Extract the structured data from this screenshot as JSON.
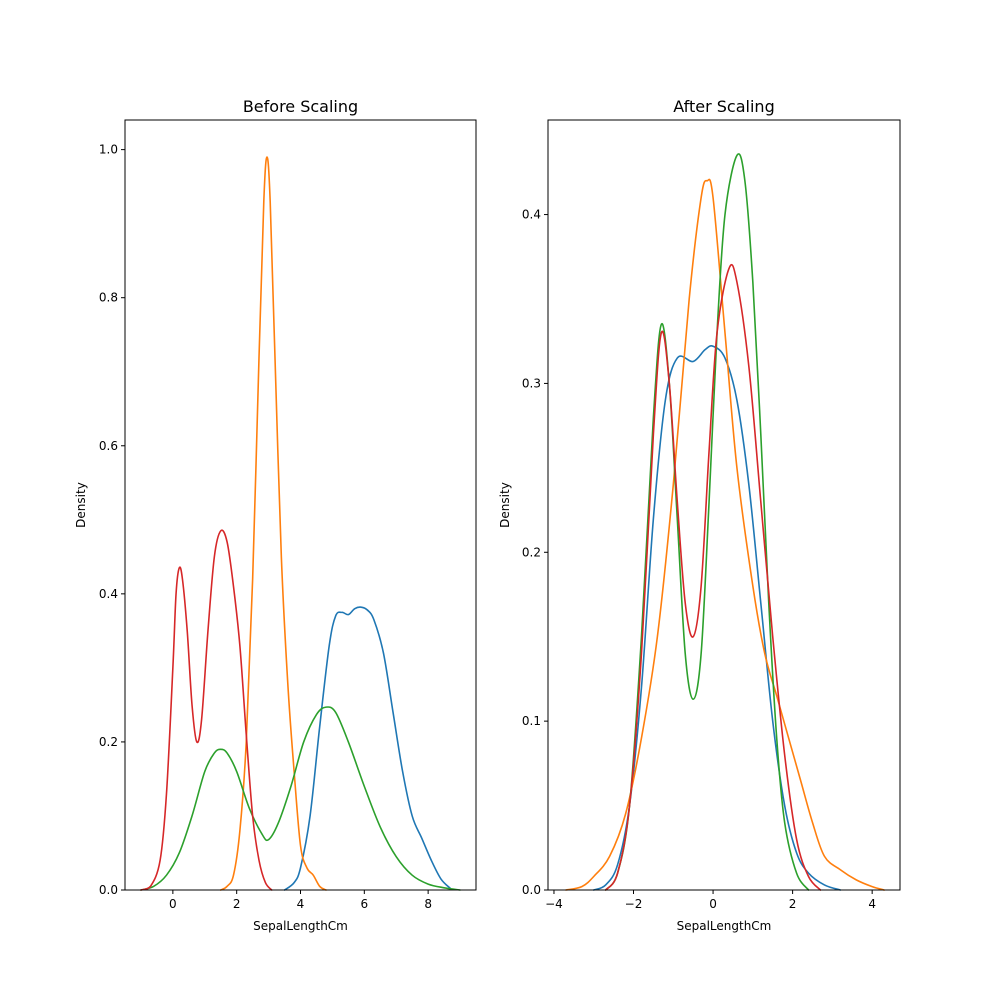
{
  "chart_data": [
    {
      "type": "line",
      "title": "Before Scaling",
      "xlabel": "SepalLengthCm",
      "ylabel": "Density",
      "xlim": [
        -1.5,
        9.5
      ],
      "ylim": [
        0,
        1.04
      ],
      "xticks": [
        0,
        2,
        4,
        6,
        8
      ],
      "xtick_labels": [
        "0",
        "2",
        "4",
        "6",
        "8"
      ],
      "yticks": [
        0.0,
        0.2,
        0.4,
        0.6,
        0.8,
        1.0
      ],
      "ytick_labels": [
        "0.0",
        "0.2",
        "0.4",
        "0.6",
        "0.8",
        "1.0"
      ],
      "grid": false,
      "series": [
        {
          "color": "#1f77b4",
          "points": [
            [
              3.5,
              0
            ],
            [
              3.8,
              0.01
            ],
            [
              4.0,
              0.03
            ],
            [
              4.3,
              0.1
            ],
            [
              4.6,
              0.22
            ],
            [
              4.9,
              0.33
            ],
            [
              5.1,
              0.37
            ],
            [
              5.3,
              0.375
            ],
            [
              5.5,
              0.372
            ],
            [
              5.7,
              0.38
            ],
            [
              5.9,
              0.382
            ],
            [
              6.1,
              0.378
            ],
            [
              6.3,
              0.365
            ],
            [
              6.6,
              0.32
            ],
            [
              6.9,
              0.24
            ],
            [
              7.2,
              0.16
            ],
            [
              7.5,
              0.1
            ],
            [
              7.8,
              0.07
            ],
            [
              8.1,
              0.04
            ],
            [
              8.4,
              0.015
            ],
            [
              8.7,
              0.002
            ]
          ]
        },
        {
          "color": "#ff7f0e",
          "points": [
            [
              1.5,
              0
            ],
            [
              1.7,
              0.005
            ],
            [
              1.9,
              0.02
            ],
            [
              2.1,
              0.08
            ],
            [
              2.3,
              0.2
            ],
            [
              2.5,
              0.42
            ],
            [
              2.7,
              0.72
            ],
            [
              2.85,
              0.93
            ],
            [
              2.95,
              0.99
            ],
            [
              3.05,
              0.93
            ],
            [
              3.2,
              0.72
            ],
            [
              3.4,
              0.45
            ],
            [
              3.6,
              0.28
            ],
            [
              3.8,
              0.16
            ],
            [
              4.0,
              0.06
            ],
            [
              4.2,
              0.03
            ],
            [
              4.4,
              0.02
            ],
            [
              4.6,
              0.005
            ],
            [
              4.8,
              0
            ]
          ]
        },
        {
          "color": "#2ca02c",
          "points": [
            [
              -1.0,
              0
            ],
            [
              -0.6,
              0.005
            ],
            [
              -0.2,
              0.02
            ],
            [
              0.2,
              0.05
            ],
            [
              0.6,
              0.1
            ],
            [
              1.0,
              0.16
            ],
            [
              1.3,
              0.185
            ],
            [
              1.5,
              0.19
            ],
            [
              1.7,
              0.185
            ],
            [
              2.0,
              0.16
            ],
            [
              2.4,
              0.11
            ],
            [
              2.8,
              0.075
            ],
            [
              3.0,
              0.068
            ],
            [
              3.3,
              0.09
            ],
            [
              3.7,
              0.14
            ],
            [
              4.1,
              0.2
            ],
            [
              4.5,
              0.237
            ],
            [
              4.8,
              0.247
            ],
            [
              5.1,
              0.24
            ],
            [
              5.5,
              0.2
            ],
            [
              6.0,
              0.14
            ],
            [
              6.5,
              0.085
            ],
            [
              7.0,
              0.045
            ],
            [
              7.5,
              0.02
            ],
            [
              8.0,
              0.008
            ],
            [
              8.5,
              0.003
            ],
            [
              9.0,
              0
            ]
          ]
        },
        {
          "color": "#d62728",
          "points": [
            [
              -1.0,
              0
            ],
            [
              -0.7,
              0.005
            ],
            [
              -0.4,
              0.04
            ],
            [
              -0.2,
              0.13
            ],
            [
              0.0,
              0.3
            ],
            [
              0.1,
              0.4
            ],
            [
              0.2,
              0.435
            ],
            [
              0.3,
              0.42
            ],
            [
              0.45,
              0.35
            ],
            [
              0.6,
              0.25
            ],
            [
              0.75,
              0.2
            ],
            [
              0.9,
              0.23
            ],
            [
              1.1,
              0.35
            ],
            [
              1.3,
              0.45
            ],
            [
              1.5,
              0.485
            ],
            [
              1.7,
              0.47
            ],
            [
              1.9,
              0.41
            ],
            [
              2.1,
              0.33
            ],
            [
              2.3,
              0.21
            ],
            [
              2.5,
              0.1
            ],
            [
              2.7,
              0.04
            ],
            [
              2.9,
              0.01
            ],
            [
              3.1,
              0
            ]
          ]
        }
      ]
    },
    {
      "type": "line",
      "title": "After Scaling",
      "xlabel": "SepalLengthCm",
      "ylabel": "Density",
      "xlim": [
        -4.15,
        4.7
      ],
      "ylim": [
        0,
        0.456
      ],
      "xticks": [
        -4,
        -2,
        0,
        2,
        4
      ],
      "xtick_labels": [
        "−4",
        "−2",
        "0",
        "2",
        "4"
      ],
      "yticks": [
        0.0,
        0.1,
        0.2,
        0.3,
        0.4
      ],
      "ytick_labels": [
        "0.0",
        "0.1",
        "0.2",
        "0.3",
        "0.4"
      ],
      "grid": false,
      "series": [
        {
          "color": "#1f77b4",
          "points": [
            [
              -3.0,
              0
            ],
            [
              -2.7,
              0.003
            ],
            [
              -2.4,
              0.015
            ],
            [
              -2.1,
              0.05
            ],
            [
              -1.8,
              0.12
            ],
            [
              -1.5,
              0.22
            ],
            [
              -1.2,
              0.29
            ],
            [
              -0.9,
              0.315
            ],
            [
              -0.5,
              0.313
            ],
            [
              -0.2,
              0.32
            ],
            [
              0.0,
              0.322
            ],
            [
              0.3,
              0.315
            ],
            [
              0.6,
              0.29
            ],
            [
              0.9,
              0.24
            ],
            [
              1.2,
              0.17
            ],
            [
              1.5,
              0.1
            ],
            [
              1.8,
              0.05
            ],
            [
              2.1,
              0.022
            ],
            [
              2.4,
              0.01
            ],
            [
              2.8,
              0.003
            ],
            [
              3.2,
              0
            ]
          ]
        },
        {
          "color": "#ff7f0e",
          "points": [
            [
              -3.7,
              0
            ],
            [
              -3.3,
              0.002
            ],
            [
              -3.0,
              0.008
            ],
            [
              -2.6,
              0.02
            ],
            [
              -2.2,
              0.045
            ],
            [
              -1.8,
              0.09
            ],
            [
              -1.4,
              0.15
            ],
            [
              -1.0,
              0.24
            ],
            [
              -0.6,
              0.35
            ],
            [
              -0.3,
              0.41
            ],
            [
              -0.15,
              0.42
            ],
            [
              0.0,
              0.41
            ],
            [
              0.3,
              0.33
            ],
            [
              0.6,
              0.25
            ],
            [
              1.0,
              0.18
            ],
            [
              1.3,
              0.14
            ],
            [
              1.6,
              0.115
            ],
            [
              1.9,
              0.09
            ],
            [
              2.2,
              0.065
            ],
            [
              2.5,
              0.04
            ],
            [
              2.8,
              0.02
            ],
            [
              3.2,
              0.012
            ],
            [
              3.6,
              0.006
            ],
            [
              4.0,
              0.002
            ],
            [
              4.3,
              0
            ]
          ]
        },
        {
          "color": "#2ca02c",
          "points": [
            [
              -2.7,
              0
            ],
            [
              -2.4,
              0.01
            ],
            [
              -2.1,
              0.05
            ],
            [
              -1.8,
              0.15
            ],
            [
              -1.5,
              0.28
            ],
            [
              -1.3,
              0.335
            ],
            [
              -1.1,
              0.3
            ],
            [
              -0.9,
              0.22
            ],
            [
              -0.7,
              0.14
            ],
            [
              -0.5,
              0.113
            ],
            [
              -0.3,
              0.14
            ],
            [
              -0.1,
              0.23
            ],
            [
              0.1,
              0.33
            ],
            [
              0.3,
              0.4
            ],
            [
              0.6,
              0.435
            ],
            [
              0.8,
              0.42
            ],
            [
              1.0,
              0.36
            ],
            [
              1.2,
              0.27
            ],
            [
              1.4,
              0.17
            ],
            [
              1.6,
              0.09
            ],
            [
              1.8,
              0.04
            ],
            [
              2.1,
              0.01
            ],
            [
              2.4,
              0
            ]
          ]
        },
        {
          "color": "#d62728",
          "points": [
            [
              -2.7,
              0
            ],
            [
              -2.4,
              0.01
            ],
            [
              -2.1,
              0.05
            ],
            [
              -1.8,
              0.14
            ],
            [
              -1.5,
              0.27
            ],
            [
              -1.3,
              0.33
            ],
            [
              -1.1,
              0.3
            ],
            [
              -0.9,
              0.23
            ],
            [
              -0.7,
              0.17
            ],
            [
              -0.5,
              0.15
            ],
            [
              -0.3,
              0.18
            ],
            [
              -0.1,
              0.26
            ],
            [
              0.1,
              0.33
            ],
            [
              0.4,
              0.368
            ],
            [
              0.6,
              0.36
            ],
            [
              0.9,
              0.31
            ],
            [
              1.2,
              0.23
            ],
            [
              1.5,
              0.15
            ],
            [
              1.8,
              0.08
            ],
            [
              2.1,
              0.03
            ],
            [
              2.4,
              0.008
            ],
            [
              2.7,
              0
            ]
          ]
        }
      ]
    }
  ]
}
